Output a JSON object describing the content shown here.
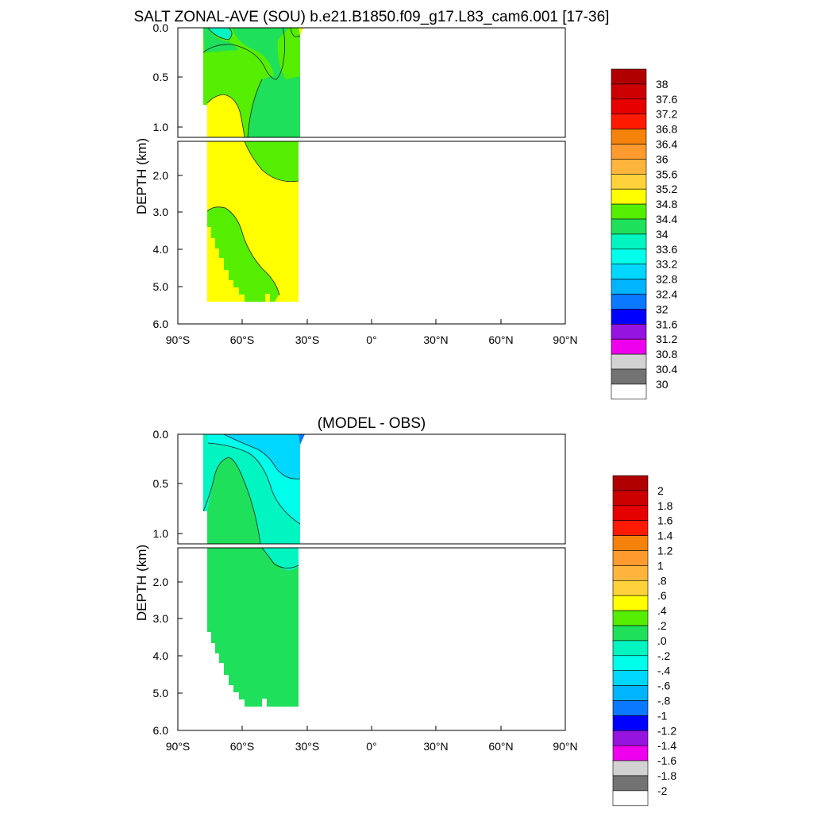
{
  "chart_data": [
    {
      "type": "heatmap",
      "title": "SALT ZONAL-AVE (SOU) b.e21.B1850.f09_g17.L83_cam6.001 [17-36]",
      "xlabel": "",
      "ylabel": "DEPTH (km)",
      "x_ticks": [
        "90°S",
        "60°S",
        "30°S",
        "0°",
        "30°N",
        "60°N",
        "90°N"
      ],
      "y_ticks_top": [
        "0.0",
        "0.5",
        "1.0"
      ],
      "y_ticks_bottom": [
        "2.0",
        "3.0",
        "4.0",
        "5.0",
        "6.0"
      ],
      "xlim": [
        -90,
        90
      ],
      "ylim_top_km": [
        0,
        1.1
      ],
      "ylim_bottom_km": [
        1.1,
        6.0
      ],
      "colorbar": {
        "labels": [
          "38",
          "37.6",
          "37.2",
          "36.8",
          "36.4",
          "36",
          "35.6",
          "35.2",
          "34.8",
          "34.4",
          "34",
          "33.6",
          "33.2",
          "32.8",
          "32.4",
          "32",
          "31.6",
          "31.2",
          "30.8",
          "30.4",
          "30"
        ],
        "colors": [
          "#b00000",
          "#cc0000",
          "#e60000",
          "#ff1a00",
          "#f5820a",
          "#ff9a2e",
          "#ffb43c",
          "#ffd23c",
          "#ffff00",
          "#55ee00",
          "#1fe05a",
          "#00f5c0",
          "#00ffea",
          "#00d7ff",
          "#00b4ff",
          "#0a78ff",
          "#0000ff",
          "#9614e0",
          "#ee00ee",
          "#d2d2d2",
          "#737373",
          "#ffffff"
        ]
      },
      "regions": [
        {
          "fill": "#1fe05a",
          "lat_range": [
            -76,
            -34
          ],
          "depth_range_km": [
            0,
            5.4
          ],
          "description_value": "34.0-34.4"
        },
        {
          "fill": "#55ee00",
          "lat_range": [
            -76,
            -34
          ],
          "depth_range_km": [
            0,
            5.4
          ],
          "description_value": "34.4-34.8"
        },
        {
          "fill": "#ffff00",
          "lat_range": [
            -75,
            -34
          ],
          "depth_range_km": [
            0.6,
            5.4
          ],
          "description_value": "34.8-35.2"
        }
      ]
    },
    {
      "type": "heatmap",
      "title": "(MODEL - OBS)",
      "xlabel": "",
      "ylabel": "DEPTH (km)",
      "x_ticks": [
        "90°S",
        "60°S",
        "30°S",
        "0°",
        "30°N",
        "60°N",
        "90°N"
      ],
      "y_ticks_top": [
        "0.0",
        "0.5",
        "1.0"
      ],
      "y_ticks_bottom": [
        "2.0",
        "3.0",
        "4.0",
        "5.0",
        "6.0"
      ],
      "xlim": [
        -90,
        90
      ],
      "ylim_top_km": [
        0,
        1.1
      ],
      "ylim_bottom_km": [
        1.1,
        6.0
      ],
      "colorbar": {
        "labels": [
          "2",
          "1.8",
          "1.6",
          "1.4",
          "1.2",
          "1",
          ".8",
          ".6",
          ".4",
          ".2",
          ".0",
          "-.2",
          "-.4",
          "-.6",
          "-.8",
          "-1",
          "-1.2",
          "-1.4",
          "-1.6",
          "-1.8",
          "-2"
        ],
        "colors": [
          "#b00000",
          "#cc0000",
          "#e60000",
          "#ff1a00",
          "#f5820a",
          "#ff9a2e",
          "#ffb43c",
          "#ffd23c",
          "#ffff00",
          "#55ee00",
          "#1fe05a",
          "#00f5c0",
          "#00ffea",
          "#00d7ff",
          "#00b4ff",
          "#0a78ff",
          "#0000ff",
          "#9614e0",
          "#ee00ee",
          "#d2d2d2",
          "#737373",
          "#ffffff"
        ]
      },
      "regions": [
        {
          "fill": "#1fe05a",
          "lat_range": [
            -76,
            -34
          ],
          "depth_range_km": [
            0.2,
            5.4
          ],
          "description_value": "0.0-0.2"
        },
        {
          "fill": "#00f5c0",
          "lat_range": [
            -76,
            -34
          ],
          "depth_range_km": [
            0,
            1.4
          ],
          "description_value": "-0.2-0.0"
        },
        {
          "fill": "#00ffea",
          "lat_range": [
            -70,
            -34
          ],
          "depth_range_km": [
            0,
            1.2
          ],
          "description_value": "-0.4--0.2"
        },
        {
          "fill": "#00d7ff",
          "lat_range": [
            -60,
            -34
          ],
          "depth_range_km": [
            0,
            0.45
          ],
          "description_value": "-0.6--0.4"
        }
      ]
    }
  ]
}
